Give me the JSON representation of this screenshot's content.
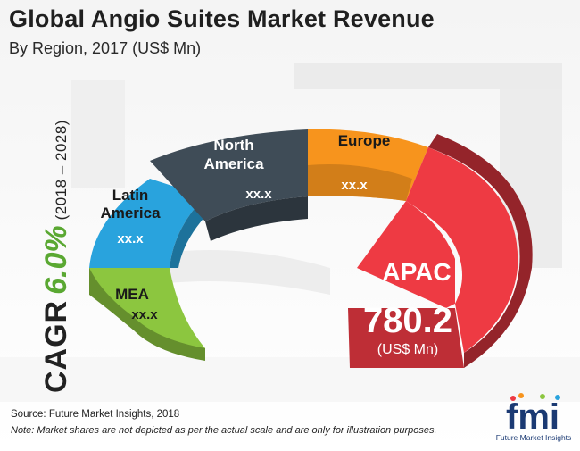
{
  "header": {
    "title": "Global Angio Suites Market Revenue",
    "subtitle": "By Region, 2017 (US$ Mn)"
  },
  "cagr": {
    "label": "CAGR",
    "value": "6.0%",
    "period": "(2018 – 2028)"
  },
  "footer": {
    "source": "Source: Future Market Insights, 2018",
    "note": "Note: Market shares are not depicted as per the actual scale and are only for illustration purposes."
  },
  "logo": {
    "text": "fmi",
    "subtext": "Future Market Insights"
  },
  "colors": {
    "mea": "#8cc63f",
    "latin_america": "#29a3dd",
    "north_america": "#3f4c57",
    "europe": "#f7941d",
    "apac": "#ee3a43",
    "cagr_value": "#5aa832"
  },
  "chart_data": {
    "type": "pie",
    "style": "3d-ring",
    "categories": [
      "MEA",
      "Latin America",
      "North America",
      "Europe",
      "APAC"
    ],
    "labels": [
      "MEA",
      "Latin\nAmerica",
      "North\nAmerica",
      "Europe",
      "APAC"
    ],
    "value_labels": [
      "xx.x",
      "xx.x",
      "xx.x",
      "xx.x",
      "780.2"
    ],
    "values": [
      null,
      null,
      null,
      null,
      780.2
    ],
    "unit": "(US$ Mn)"
  }
}
